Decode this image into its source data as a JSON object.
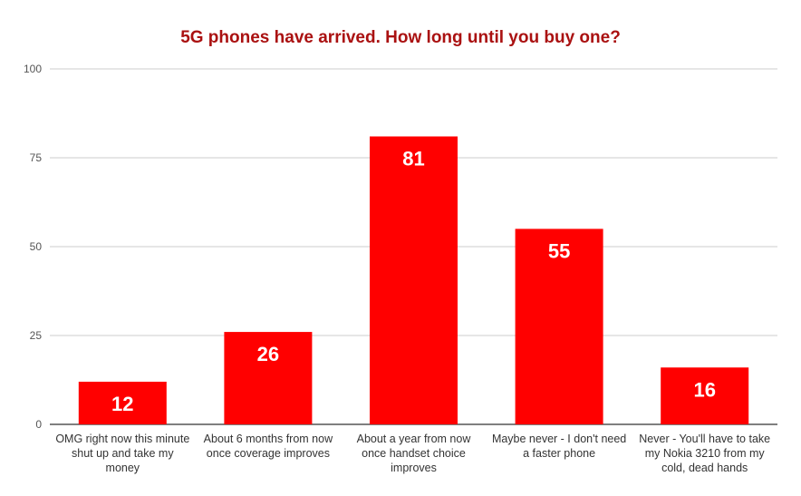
{
  "chart_data": {
    "type": "bar",
    "title": "5G phones have arrived. How long until you buy one?",
    "xlabel": "",
    "ylabel": "",
    "ylim": [
      0,
      100
    ],
    "yticks": [
      0,
      25,
      50,
      75,
      100
    ],
    "grid": true,
    "legend": "none",
    "categories": [
      [
        "OMG right now this minute",
        "shut up and take my",
        "money"
      ],
      [
        "About 6 months from now",
        "once coverage improves"
      ],
      [
        "About a year from now",
        "once handset choice",
        "improves"
      ],
      [
        "Maybe never - I don't need",
        "a faster phone"
      ],
      [
        "Never - You'll have to take",
        "my Nokia 3210 from my",
        "cold, dead hands"
      ]
    ],
    "values": [
      12,
      26,
      81,
      55,
      16
    ],
    "colors": {
      "bar": "#ff0000",
      "title": "#aa1111",
      "grid": "#cccccc",
      "axis": "#333333"
    }
  }
}
